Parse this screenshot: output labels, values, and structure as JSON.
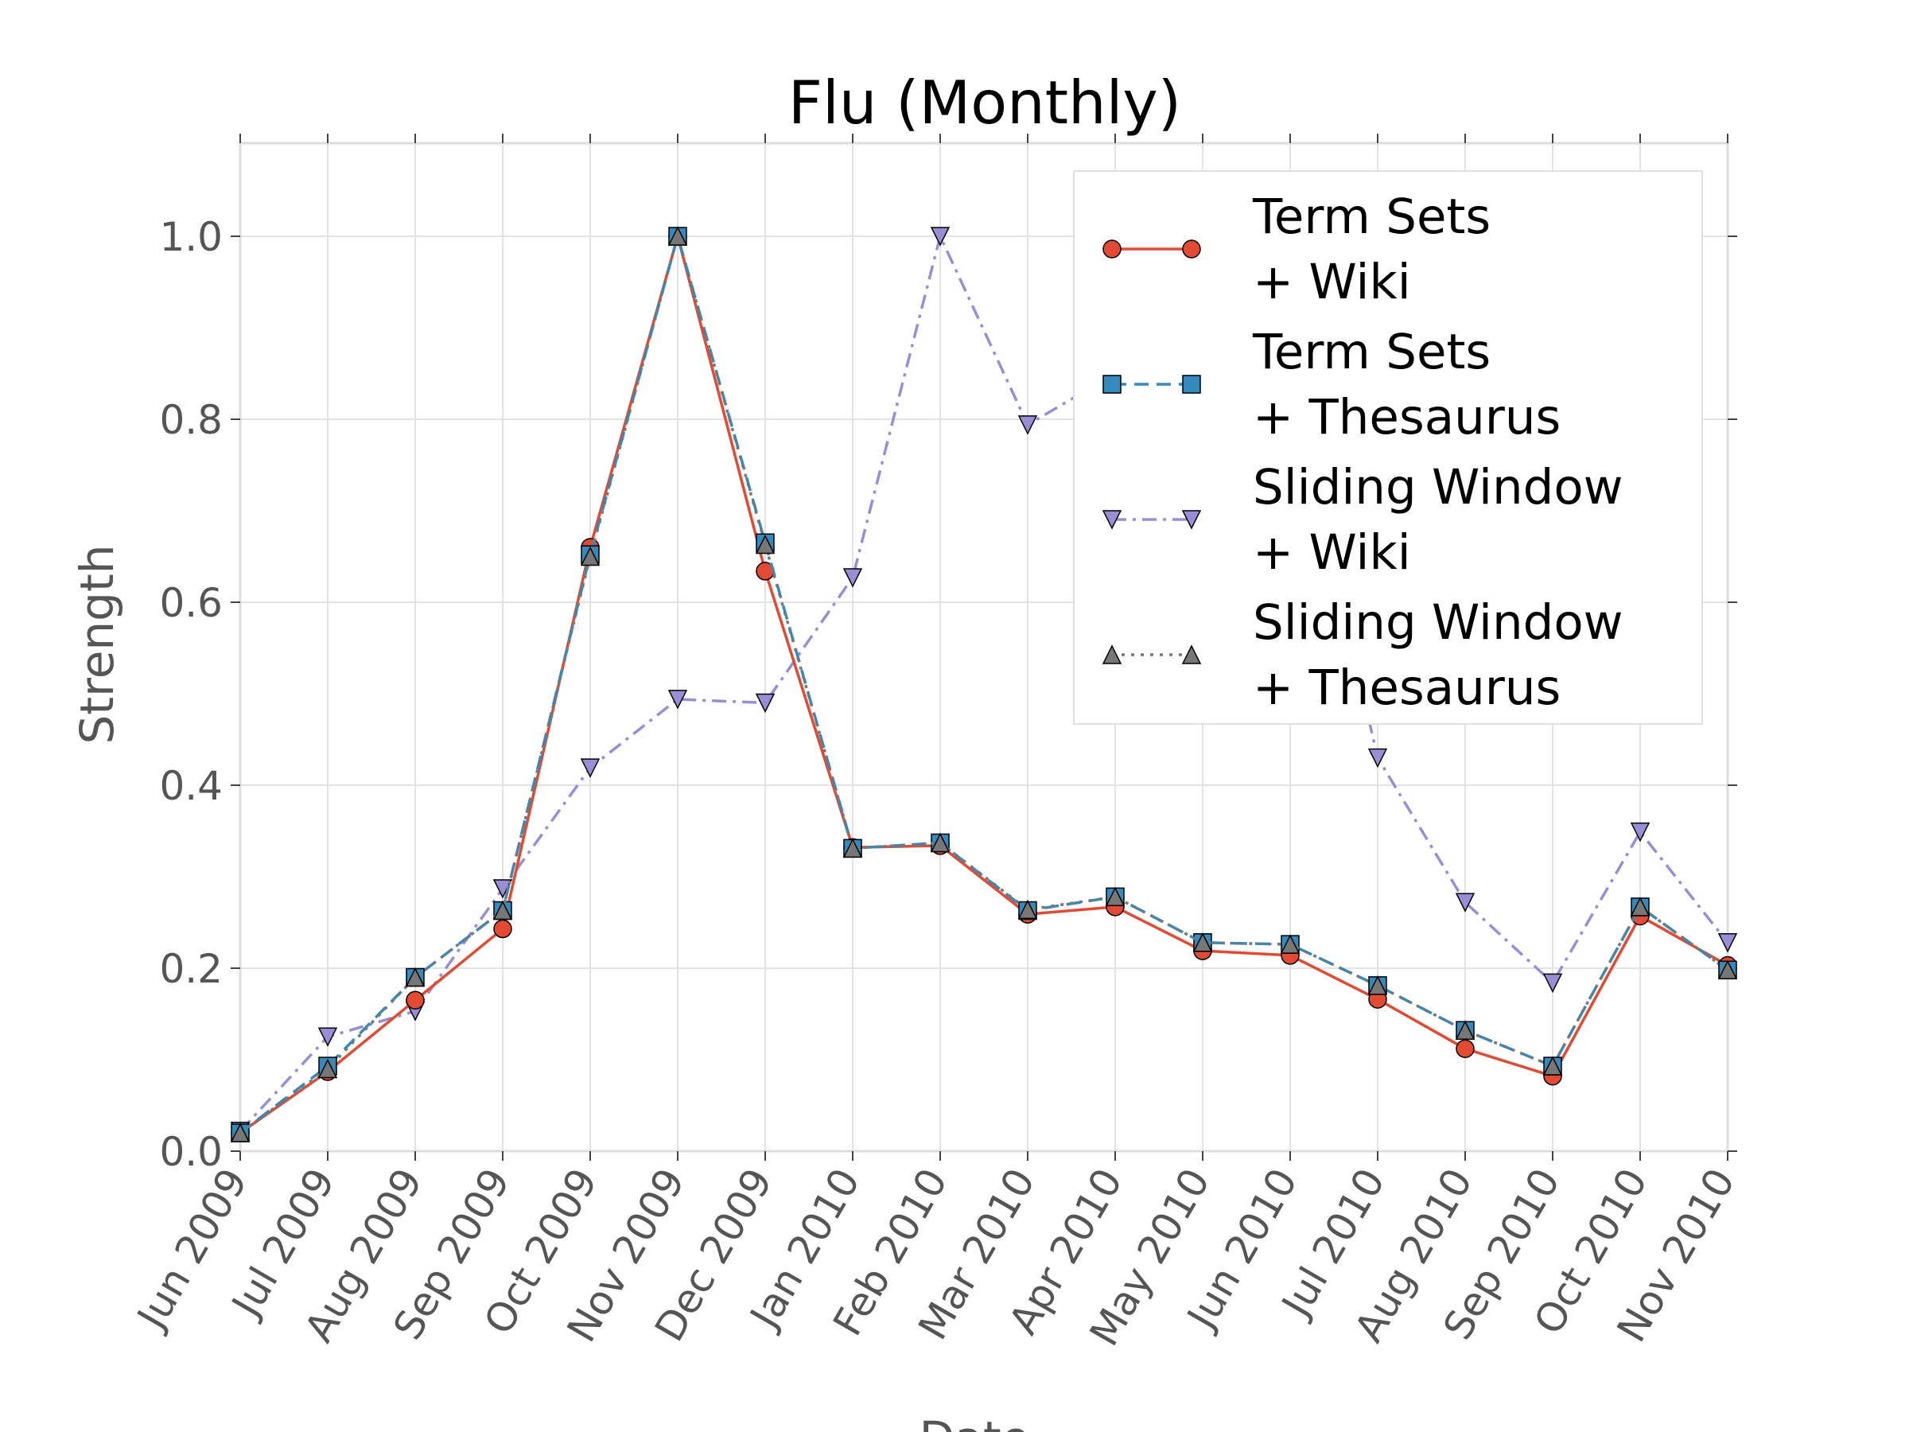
{
  "chart_data": {
    "type": "line",
    "title": "Flu (Monthly)",
    "xlabel": "Date",
    "ylabel": "Strength",
    "ylim": [
      0.0,
      1.1
    ],
    "yticks": [
      "0.0",
      "0.2",
      "0.4",
      "0.6",
      "0.8",
      "1.0"
    ],
    "grid": true,
    "legend_position": "top-right",
    "categories": [
      "Jun 2009",
      "Jul 2009",
      "Aug 2009",
      "Sep 2009",
      "Oct 2009",
      "Nov 2009",
      "Dec 2009",
      "Jan 2010",
      "Feb 2010",
      "Mar 2010",
      "Apr 2010",
      "May 2010",
      "Jun 2010",
      "Jul 2010",
      "Aug 2010",
      "Sep 2010",
      "Oct 2010",
      "Nov 2010"
    ],
    "series": [
      {
        "name": "Term Sets\n+ Wiki",
        "color": "#E24A33",
        "marker": "circle",
        "line_style": "solid",
        "values": [
          0.02,
          0.087,
          0.165,
          0.243,
          0.66,
          1.0,
          0.634,
          0.332,
          0.334,
          0.259,
          0.267,
          0.219,
          0.214,
          0.166,
          0.112,
          0.082,
          0.257,
          0.203
        ]
      },
      {
        "name": "Term Sets\n+ Thesaurus",
        "color": "#348ABD",
        "marker": "square",
        "line_style": "dashed",
        "values": [
          0.02,
          0.093,
          0.19,
          0.263,
          0.652,
          1.0,
          0.665,
          0.331,
          0.337,
          0.263,
          0.278,
          0.228,
          0.226,
          0.181,
          0.132,
          0.093,
          0.267,
          0.198
        ]
      },
      {
        "name": "Sliding Window\n+ Wiki",
        "color": "#988ED5",
        "marker": "triangle-down",
        "line_style": "dashdot",
        "values": [
          0.022,
          0.125,
          0.153,
          0.287,
          0.419,
          0.494,
          0.49,
          0.627,
          1.0,
          0.794,
          0.85,
          0.86,
          0.84,
          0.43,
          0.272,
          0.184,
          0.349,
          0.228
        ]
      },
      {
        "name": "Sliding Window\n+ Thesaurus",
        "color": "#777777",
        "marker": "triangle-up",
        "line_style": "dotted",
        "values": [
          0.02,
          0.09,
          0.19,
          0.263,
          0.65,
          1.0,
          0.663,
          0.331,
          0.337,
          0.264,
          0.278,
          0.228,
          0.226,
          0.181,
          0.132,
          0.093,
          0.267,
          0.198
        ]
      }
    ]
  }
}
